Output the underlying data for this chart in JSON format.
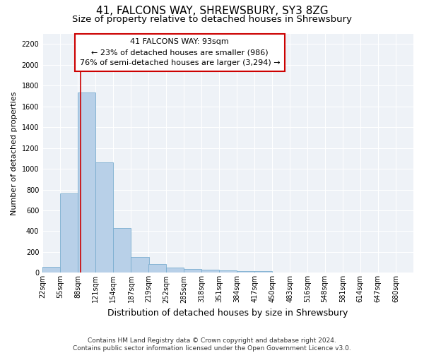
{
  "title": "41, FALCONS WAY, SHREWSBURY, SY3 8ZG",
  "subtitle": "Size of property relative to detached houses in Shrewsbury",
  "xlabel": "Distribution of detached houses by size in Shrewsbury",
  "ylabel": "Number of detached properties",
  "footer_line1": "Contains HM Land Registry data © Crown copyright and database right 2024.",
  "footer_line2": "Contains public sector information licensed under the Open Government Licence v3.0.",
  "annotation_line1": "41 FALCONS WAY: 93sqm",
  "annotation_line2": "← 23% of detached houses are smaller (986)",
  "annotation_line3": "76% of semi-detached houses are larger (3,294) →",
  "bar_color": "#b8d0e8",
  "bar_edge_color": "#7aadcf",
  "vline_color": "#cc0000",
  "vline_x": 93,
  "categories": [
    "22sqm",
    "55sqm",
    "88sqm",
    "121sqm",
    "154sqm",
    "187sqm",
    "219sqm",
    "252sqm",
    "285sqm",
    "318sqm",
    "351sqm",
    "384sqm",
    "417sqm",
    "450sqm",
    "483sqm",
    "516sqm",
    "548sqm",
    "581sqm",
    "614sqm",
    "647sqm",
    "680sqm"
  ],
  "bin_edges": [
    22,
    55,
    88,
    121,
    154,
    187,
    219,
    252,
    285,
    318,
    351,
    384,
    417,
    450,
    483,
    516,
    548,
    581,
    614,
    647,
    680
  ],
  "bin_width": 33,
  "values": [
    55,
    760,
    1730,
    1060,
    430,
    150,
    85,
    50,
    38,
    30,
    20,
    15,
    18,
    0,
    0,
    0,
    0,
    0,
    0,
    0,
    0
  ],
  "ylim": [
    0,
    2300
  ],
  "yticks": [
    0,
    200,
    400,
    600,
    800,
    1000,
    1200,
    1400,
    1600,
    1800,
    2000,
    2200
  ],
  "background_color": "#eef2f7",
  "grid_color": "#ffffff",
  "title_fontsize": 11,
  "subtitle_fontsize": 9.5,
  "ylabel_fontsize": 8,
  "xlabel_fontsize": 9,
  "tick_fontsize": 7,
  "annotation_fontsize": 8,
  "footer_fontsize": 6.5
}
